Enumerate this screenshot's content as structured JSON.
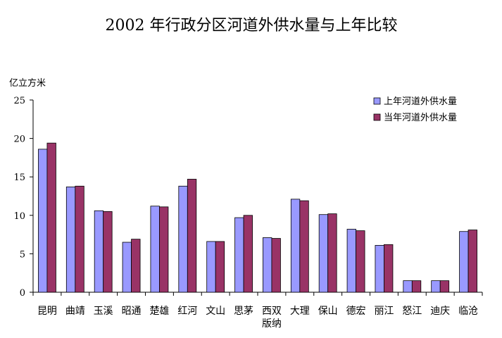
{
  "chart_data": {
    "type": "bar",
    "title": "2002 年行政分区河道外供水量与上年比较",
    "ylabel": "亿立方米",
    "xlabel": "",
    "ylim": [
      0,
      25
    ],
    "yticks": [
      "0",
      "5",
      "10",
      "15",
      "20",
      "25"
    ],
    "grid": false,
    "legend_position": "top-right",
    "categories": [
      "昆明",
      "曲靖",
      "玉溪",
      "昭通",
      "楚雄",
      "红河",
      "文山",
      "思茅",
      "西双版纳",
      "大理",
      "保山",
      "德宏",
      "丽江",
      "怒江",
      "迪庆",
      "临沧"
    ],
    "category_lines": [
      [
        "昆明"
      ],
      [
        "曲靖"
      ],
      [
        "玉溪"
      ],
      [
        "昭通"
      ],
      [
        "楚雄"
      ],
      [
        "红河"
      ],
      [
        "文山"
      ],
      [
        "思茅"
      ],
      [
        "西双",
        "版纳"
      ],
      [
        "大理"
      ],
      [
        "保山"
      ],
      [
        "德宏"
      ],
      [
        "丽江"
      ],
      [
        "怒江"
      ],
      [
        "迪庆"
      ],
      [
        "临沧"
      ]
    ],
    "series": [
      {
        "name": "上年河道外供水量",
        "color": "#9999ff",
        "values": [
          18.6,
          13.7,
          10.6,
          6.5,
          11.2,
          13.8,
          6.6,
          9.7,
          7.1,
          12.1,
          10.1,
          8.2,
          6.1,
          1.5,
          1.5,
          7.9
        ]
      },
      {
        "name": "当年河道外供水量",
        "color": "#993366",
        "values": [
          19.4,
          13.8,
          10.5,
          6.9,
          11.1,
          14.7,
          6.6,
          10.0,
          7.0,
          11.9,
          10.2,
          8.0,
          6.2,
          1.5,
          1.5,
          8.1
        ]
      }
    ]
  }
}
